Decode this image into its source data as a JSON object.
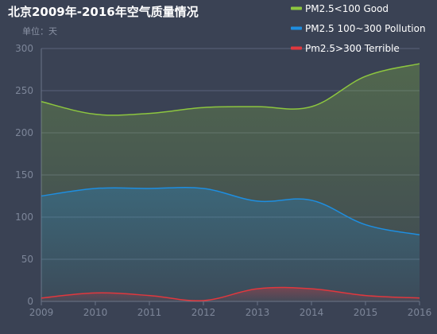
{
  "chart_data": {
    "type": "area",
    "title": "北京2009年-2016年空气质量情况",
    "subtitle": "单位：天",
    "x": [
      "2009",
      "2010",
      "2011",
      "2012",
      "2013",
      "2014",
      "2015",
      "2016"
    ],
    "ylim": [
      0,
      300
    ],
    "yticks": [
      "0",
      "50",
      "100",
      "150",
      "200",
      "250",
      "300"
    ],
    "grid": true,
    "legend_placement": "top-right",
    "series": [
      {
        "name": "PM2.5<100 Good",
        "color": "#8dc63f",
        "values": [
          237,
          222,
          223,
          230,
          231,
          231,
          267,
          282
        ]
      },
      {
        "name": "PM2.5 100~300 Pollution",
        "color": "#1e8ee0",
        "values": [
          125,
          134,
          134,
          134,
          119,
          120,
          91,
          79
        ]
      },
      {
        "name": "Pm2.5>300 Terrible",
        "color": "#e0383e",
        "values": [
          4,
          10,
          7,
          1,
          15,
          15,
          7,
          4
        ]
      }
    ]
  }
}
